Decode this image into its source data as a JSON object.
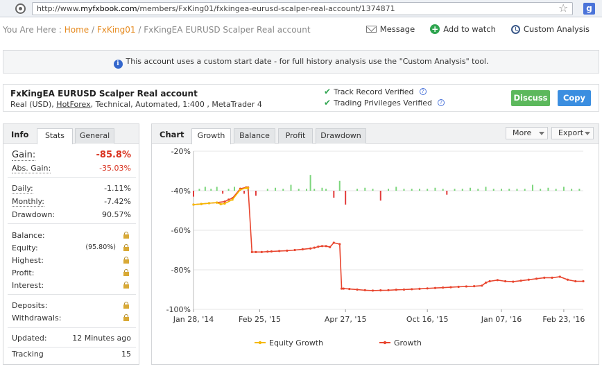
{
  "browser": {
    "url_prefix": "http://www.",
    "url_domain": "myfxbook.com",
    "url_path": "/members/FxKing01/fxkingea-eurusd-scalper-real-account/1374871",
    "google_label": "g"
  },
  "breadcrumb": {
    "prefix": "You Are Here : ",
    "home": "Home",
    "sep1": " / ",
    "user": "FxKing01",
    "sep2": " / ",
    "current": "FxKingEA EURUSD Scalper Real account"
  },
  "actions": {
    "message": "Message",
    "watch": "Add to watch",
    "custom": "Custom Analysis"
  },
  "notice": {
    "icon": "i",
    "text": "This account uses a custom start date - for full history analysis use the \"Custom Analysis\" tool."
  },
  "account": {
    "title": "FxKingEA EURUSD Scalper Real account",
    "currency": "Real (USD), ",
    "broker": "HotForex",
    "details": ", Technical, Automated, 1:400 , MetaTrader 4",
    "track_record": "Track Record Verified",
    "trading_privileges": "Trading Privileges Verified",
    "check": "✔",
    "help": "?",
    "discuss_label": "Discuss",
    "copy_label": "Copy"
  },
  "info_panel": {
    "title": "Info",
    "tabs": [
      "Stats",
      "General"
    ],
    "gain_label": "Gain:",
    "gain_value": "-85.8%",
    "abs_gain_label": "Abs. Gain:",
    "abs_gain_value": "-35.03%",
    "daily_label": "Daily:",
    "daily_value": "-1.11%",
    "monthly_label": "Monthly:",
    "monthly_value": "-7.42%",
    "drawdown_label": "Drawdown:",
    "drawdown_value": "90.57%",
    "balance_label": "Balance:",
    "equity_label": "Equity:",
    "equity_pct": "(95.80%)",
    "highest_label": "Highest:",
    "profit_label": "Profit:",
    "interest_label": "Interest:",
    "deposits_label": "Deposits:",
    "withdrawals_label": "Withdrawals:",
    "updated_label": "Updated:",
    "updated_value": "12 Minutes ago",
    "tracking_label": "Tracking",
    "tracking_value": "15"
  },
  "chart_panel": {
    "title": "Chart",
    "tabs": [
      "Growth",
      "Balance",
      "Profit",
      "Drawdown"
    ],
    "more_label": "More",
    "export_label": "Export"
  },
  "colors": {
    "growth": "#e8452e",
    "equity": "#f5b800",
    "bar_pos": "#7cd67c",
    "bar_neg": "#e23a3a"
  },
  "chart_data": {
    "type": "line",
    "title": "",
    "xlabel": "",
    "ylabel": "",
    "ylim": [
      -100,
      -20
    ],
    "yticks": [
      "-20%",
      "-40%",
      "-60%",
      "-80%",
      "-100%"
    ],
    "ytick_values": [
      -20,
      -40,
      -60,
      -80,
      -100
    ],
    "xticks": [
      "Jan 28, '14",
      "Feb 25, '15",
      "Apr 27, '15",
      "Oct 16, '15",
      "Jan 07, '16",
      "Feb 23, '16"
    ],
    "xtick_positions": [
      0,
      0.17,
      0.39,
      0.6,
      0.79,
      0.95
    ],
    "x_range": [
      0,
      1
    ],
    "legend": [
      "Equity Growth",
      "Growth"
    ],
    "legend_position": "bottom",
    "series": [
      {
        "name": "Growth",
        "x": [
          0,
          0.02,
          0.04,
          0.06,
          0.08,
          0.09,
          0.1,
          0.1,
          0.12,
          0.135,
          0.14,
          0.15,
          0.16,
          0.175,
          0.19,
          0.2,
          0.22,
          0.24,
          0.26,
          0.28,
          0.3,
          0.31,
          0.32,
          0.33,
          0.34,
          0.35,
          0.36,
          0.375,
          0.38,
          0.385,
          0.4,
          0.42,
          0.44,
          0.46,
          0.48,
          0.5,
          0.52,
          0.54,
          0.56,
          0.58,
          0.6,
          0.62,
          0.64,
          0.66,
          0.68,
          0.7,
          0.72,
          0.74,
          0.75,
          0.76,
          0.78,
          0.8,
          0.82,
          0.84,
          0.86,
          0.88,
          0.9,
          0.92,
          0.94,
          0.96,
          0.98,
          1.0
        ],
        "y": [
          -47,
          -46.7,
          -46.3,
          -46,
          -45.5,
          -44.5,
          -43.8,
          -43.8,
          -39,
          -38.3,
          -38.3,
          -71,
          -71,
          -71,
          -70.8,
          -70.7,
          -70.5,
          -70.3,
          -70,
          -69.6,
          -69.2,
          -68.8,
          -68.3,
          -68,
          -68,
          -68.5,
          -66.3,
          -67,
          -89.5,
          -89.5,
          -89.7,
          -90,
          -90.3,
          -90.5,
          -90.4,
          -90.3,
          -90.1,
          -90,
          -89.8,
          -89.6,
          -89.4,
          -89.2,
          -89,
          -88.8,
          -88.6,
          -88.4,
          -88.3,
          -88,
          -86.5,
          -85.8,
          -85.2,
          -85.8,
          -86,
          -85.5,
          -85,
          -84.5,
          -84,
          -84,
          -83.5,
          -85,
          -85.8,
          -85.8
        ]
      },
      {
        "name": "Equity Growth",
        "x": [
          0,
          0.02,
          0.04,
          0.06,
          0.07,
          0.08,
          0.1,
          0.12,
          0.135,
          0.14
        ],
        "y": [
          -47,
          -46.7,
          -46.3,
          -46,
          -46.8,
          -46.5,
          -44.5,
          -39.5,
          -38.6,
          -38.6
        ]
      }
    ],
    "bars": {
      "baseline": -40,
      "x": [
        0.0,
        0.015,
        0.03,
        0.045,
        0.06,
        0.075,
        0.09,
        0.105,
        0.13,
        0.14,
        0.16,
        0.19,
        0.21,
        0.23,
        0.25,
        0.27,
        0.29,
        0.3,
        0.31,
        0.33,
        0.34,
        0.36,
        0.375,
        0.39,
        0.42,
        0.44,
        0.46,
        0.48,
        0.5,
        0.52,
        0.54,
        0.56,
        0.58,
        0.6,
        0.62,
        0.64,
        0.65,
        0.67,
        0.69,
        0.71,
        0.73,
        0.75,
        0.77,
        0.79,
        0.81,
        0.83,
        0.85,
        0.87,
        0.89,
        0.91,
        0.93,
        0.95,
        0.97,
        0.99
      ],
      "y": [
        -3,
        1,
        2,
        1,
        2,
        -1.5,
        1,
        2,
        -1.5,
        1,
        -2.5,
        1,
        1.5,
        1,
        3,
        1,
        1,
        8,
        1,
        1.5,
        1,
        -3.5,
        5,
        -7,
        1,
        1.5,
        1,
        -5,
        1,
        2,
        1,
        1,
        1,
        1,
        1.5,
        1,
        -2,
        1,
        1,
        1.5,
        1,
        2,
        1,
        1,
        1,
        1,
        1,
        3,
        1,
        1.5,
        1,
        2,
        1,
        1
      ]
    }
  }
}
